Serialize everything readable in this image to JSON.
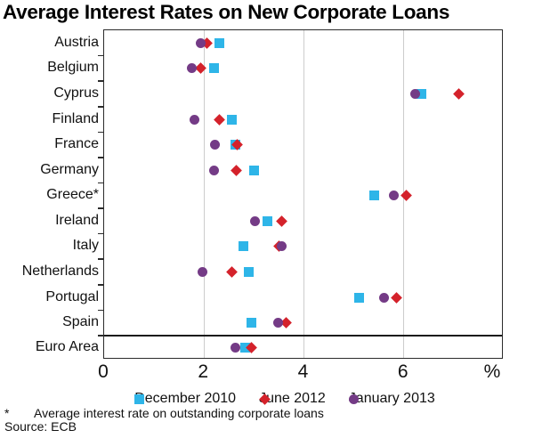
{
  "title": "Average Interest Rates on New Corporate Loans",
  "chart_data": {
    "type": "scatter",
    "variant": "horizontal_dot_plot",
    "title": "Average Interest Rates on New Corporate Loans",
    "categories": [
      "Austria",
      "Belgium",
      "Cyprus",
      "Finland",
      "France",
      "Germany",
      "Greece*",
      "Ireland",
      "Italy",
      "Netherlands",
      "Portugal",
      "Spain",
      "Euro Area"
    ],
    "series": [
      {
        "name": "December 2010",
        "marker": "square",
        "color": "#2EB5E8",
        "values": [
          2.3,
          2.2,
          6.35,
          2.55,
          2.62,
          3.0,
          5.4,
          3.27,
          2.78,
          2.9,
          5.1,
          2.95,
          2.83
        ]
      },
      {
        "name": "June 2012",
        "marker": "diamond",
        "color": "#D4222B",
        "values": [
          2.05,
          1.93,
          7.1,
          2.3,
          2.66,
          2.65,
          6.05,
          3.55,
          3.5,
          2.55,
          5.85,
          3.65,
          2.94
        ]
      },
      {
        "name": "January 2013",
        "marker": "circle",
        "color": "#743B86",
        "values": [
          1.93,
          1.76,
          6.22,
          1.81,
          2.22,
          2.2,
          5.8,
          3.02,
          3.56,
          1.97,
          5.6,
          3.48,
          2.62
        ]
      }
    ],
    "xlim": [
      0,
      8
    ],
    "x_tick_values": [
      0,
      2,
      4,
      6
    ],
    "x_tick_labels": [
      "0",
      "2",
      "4",
      "6"
    ],
    "x_unit_label": "%",
    "separator_above_category": "Euro Area",
    "gridlines": "vertical_light_gray_at_labeled_ticks",
    "legend_position": "bottom",
    "frame_color": "#2b2b2b",
    "gridline_color": "#cccccc"
  },
  "footnote": {
    "symbol": "*",
    "text": "Average interest rate on outstanding corporate loans"
  },
  "source": "Source: ECB"
}
